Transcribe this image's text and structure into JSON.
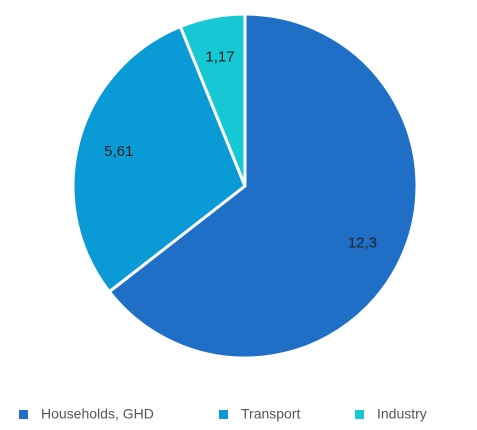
{
  "chart_data": {
    "type": "pie",
    "categories": [
      "Households, GHD",
      "Transport",
      "Industry"
    ],
    "values": [
      12.3,
      5.61,
      1.17
    ],
    "value_labels": [
      "12,3",
      "5,61",
      "1,17"
    ],
    "colors": [
      "#1f6fc6",
      "#0a9bd6",
      "#16c8d4"
    ],
    "legend": "bottom"
  }
}
